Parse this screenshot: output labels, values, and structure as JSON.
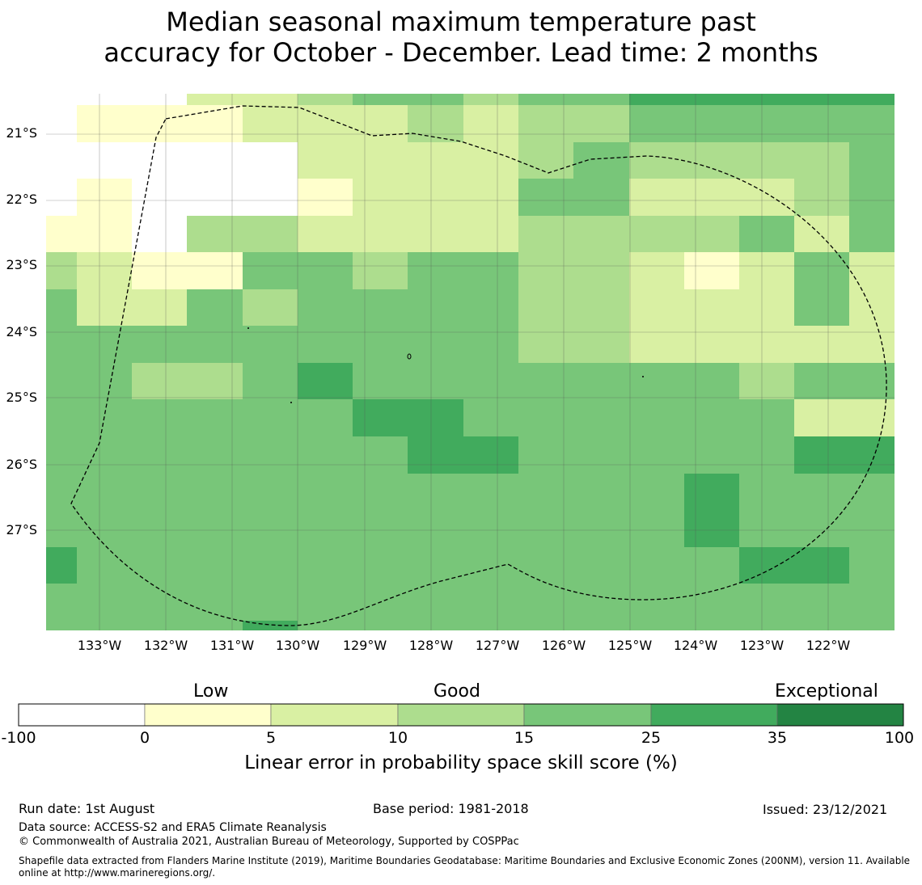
{
  "title_line1": "Median seasonal maximum temperature past",
  "title_line2": "accuracy for October - December. Lead time: 2 months",
  "map": {
    "lon_labels": [
      "133°W",
      "132°W",
      "131°W",
      "130°W",
      "129°W",
      "128°W",
      "127°W",
      "126°W",
      "125°W",
      "124°W",
      "123°W",
      "122°W"
    ],
    "lat_labels": [
      "21°S",
      "22°S",
      "23°S",
      "24°S",
      "25°S",
      "26°S",
      "27°S"
    ],
    "grid_rows": [
      "0 0 0 2 2 3 4 4 3 4 4 5",
      "0 1 1 1 2 2 2 3 2 3 3 4 4 4 4 4",
      "0 0 0 0 0 2 2 2 2 3 4 3 3 3 3 4",
      "0 1 0 0 0 1 2 2 2 4 4 2 2 2 3 4",
      "1 1 0 3 3 2 2 2 2 3 3 3 3 4 2 4",
      "3 2 1 1 4 4 3 4 4 3 3 2 1 2 4 2",
      "4 2 2 4 3 4 4 4 4 3 3 2 2 2 4 2",
      "4 4 4 4 4 4 4 4 4 3 3 2 2 2 2 2",
      "4 4 3 3 4 5 4 4 4 4 4 4 4 3 4 4",
      "4 4 4 4 4 4 5 5 4 4 4 4 4 4 2",
      "4 4 4 4 4 4 4 5 5 4 4 4 4 4 5 5",
      "4 4 4 4 4 4 4 4 4 4 4 4 5 4 4 4 5",
      "4 4 4 4 4 4 4 4 4 4 4 4 5 4 4 4 5",
      "5 4 4 4 4 4 4 4 4 4 4 4 4 5 5 4 4 5",
      "4 4 4 4 4 4 4 4 4 4 4 4 4 4 4 4 4 4 5",
      "4 4 4 4 5 4 4 4 4 4 4 4 4 4 4 4 4 4 5",
      "4 4 4 4 5 4 4 4 4 4 4 4 4 4 4 4 4 4 5",
      "4 4 4 4 4 4 4 5 4 4 4 4 4 4 4 4 4 4 5",
      "5 4 4 4 4 4 4 5 5 5 4 4 4 4 4 4 4 4 5",
      "5 4 4 4 4 4 4 5 5 5 4 4 4 4 4 4 4 4 5",
      "4 4 4 4 4 4 4 4 4 4 4 4 4 4 4 4 4 4 5"
    ]
  },
  "colorbar": {
    "categories": [
      "Low",
      "Good",
      "Exceptional"
    ],
    "ticks": [
      "-100",
      "0",
      "5",
      "10",
      "15",
      "25",
      "35",
      "100"
    ],
    "colors": [
      "#ffffff",
      "#ffffcc",
      "#d9f0a3",
      "#addd8e",
      "#78c679",
      "#41ab5d",
      "#238443"
    ],
    "title": "Linear error in probability space skill score (%)"
  },
  "footer": {
    "run_date": "Run date: 1st August",
    "base_period": "Base period: 1981-2018",
    "issued": "Issued: 23/12/2021",
    "data_source": "Data source: ACCESS-S2 and ERA5 Climate Reanalysis",
    "copyright": "© Commonwealth of Australia 2021, Australian Bureau of Meteorology, Supported by COSPPac",
    "shapefile_line1": "Shapefile data extracted from Flanders Marine Institute (2019), Maritime Boundaries Geodatabase: Maritime Boundaries and Exclusive Economic Zones (200NM), version 11. Available",
    "shapefile_line2": "online at http://www.marineregions.org/."
  }
}
